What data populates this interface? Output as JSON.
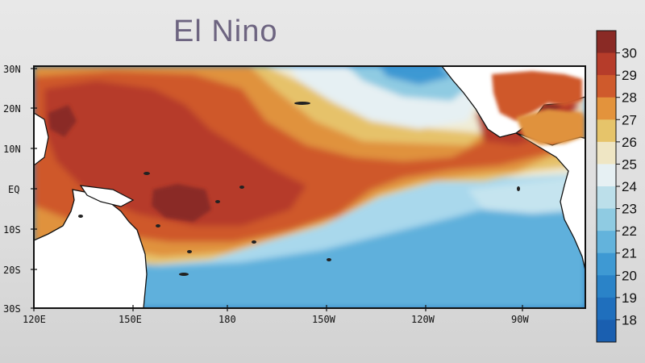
{
  "title": "El Nino",
  "map": {
    "lat_labels": [
      "30N",
      "20N",
      "10N",
      "EQ",
      "10S",
      "20S",
      "30S"
    ],
    "lon_labels": [
      "120E",
      "150E",
      "180",
      "150W",
      "120W",
      "90W"
    ],
    "colors": {
      "land_border": "#111111",
      "land": "#ffffff"
    }
  },
  "colorbar": {
    "ticks": [
      "30",
      "29",
      "28",
      "27",
      "26",
      "25",
      "24",
      "23",
      "22",
      "21",
      "20",
      "19",
      "18"
    ],
    "colors": [
      "#8a2a25",
      "#b63c2a",
      "#cf5a2c",
      "#e3933c",
      "#e6c46a",
      "#efe6c4",
      "#e6f0f3",
      "#bcdfea",
      "#8fcbe2",
      "#63b3dc",
      "#3e99d3",
      "#2a83c8",
      "#1f6fbd",
      "#1a5fb0"
    ]
  }
}
